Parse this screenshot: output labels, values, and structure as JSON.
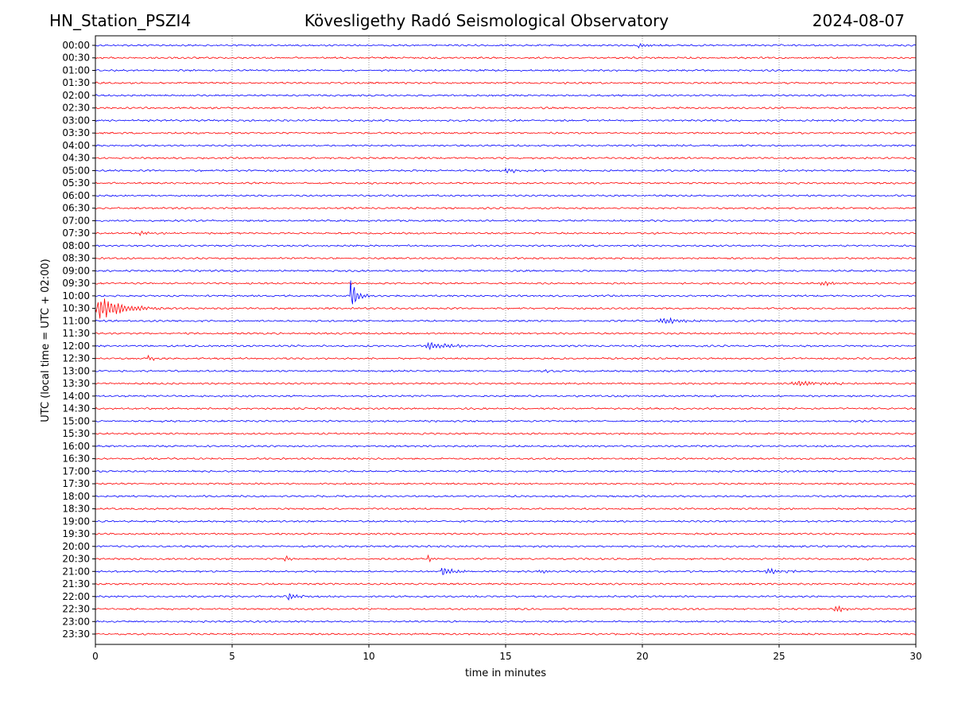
{
  "header": {
    "station": "HN_Station_PSZI4",
    "observatory": "Kövesligethy Radó Seismological Observatory",
    "date": "2024-08-07"
  },
  "chart_data": {
    "type": "line",
    "title": "Kövesligethy Radó Seismological Observatory",
    "xlabel": "time in minutes",
    "ylabel": "UTC (local time = UTC + 02:00)",
    "xlim": [
      0,
      30
    ],
    "x_ticks": [
      "0",
      "5",
      "10",
      "15",
      "20",
      "25",
      "30"
    ],
    "grid": "vertical dotted at x ticks",
    "colors": {
      "even_rows": "#0000ff",
      "odd_rows": "#ff0000",
      "grid": "#555555"
    },
    "rows": [
      "00:00",
      "00:30",
      "01:00",
      "01:30",
      "02:00",
      "02:30",
      "03:00",
      "03:30",
      "04:00",
      "04:30",
      "05:00",
      "05:30",
      "06:00",
      "06:30",
      "07:00",
      "07:30",
      "08:00",
      "08:30",
      "09:00",
      "09:30",
      "10:00",
      "10:30",
      "11:00",
      "11:30",
      "12:00",
      "12:30",
      "13:00",
      "13:30",
      "14:00",
      "14:30",
      "15:00",
      "15:30",
      "16:00",
      "16:30",
      "17:00",
      "17:30",
      "18:00",
      "18:30",
      "19:00",
      "19:30",
      "20:00",
      "20:30",
      "21:00",
      "21:30",
      "22:00",
      "22:30",
      "23:00",
      "23:30"
    ],
    "events": [
      {
        "row": "00:00",
        "start": 19.8,
        "end": 20.8,
        "amp": 0.25
      },
      {
        "row": "05:00",
        "start": 14.9,
        "end": 17.0,
        "amp": 0.25
      },
      {
        "row": "07:30",
        "start": 1.6,
        "end": 2.4,
        "amp": 0.25
      },
      {
        "row": "09:30",
        "start": 26.5,
        "end": 27.5,
        "amp": 0.35
      },
      {
        "row": "10:00",
        "start": 9.3,
        "end": 10.0,
        "amp": 1.8
      },
      {
        "row": "10:30",
        "start": 0.0,
        "end": 2.5,
        "amp": 1.4
      },
      {
        "row": "11:00",
        "start": 20.5,
        "end": 22.8,
        "amp": 0.4
      },
      {
        "row": "12:00",
        "start": 12.0,
        "end": 14.8,
        "amp": 0.45
      },
      {
        "row": "12:30",
        "start": 1.9,
        "end": 2.5,
        "amp": 0.4
      },
      {
        "row": "13:00",
        "start": 16.4,
        "end": 17.0,
        "amp": 0.25
      },
      {
        "row": "13:30",
        "start": 25.4,
        "end": 28.7,
        "amp": 0.35
      },
      {
        "row": "20:30",
        "start": 6.9,
        "end": 7.5,
        "amp": 0.4
      },
      {
        "row": "20:30",
        "start": 12.1,
        "end": 12.8,
        "amp": 0.4
      },
      {
        "row": "20:30",
        "start": 28.2,
        "end": 29.0,
        "amp": 0.2
      },
      {
        "row": "21:00",
        "start": 12.6,
        "end": 13.8,
        "amp": 0.5
      },
      {
        "row": "21:00",
        "start": 16.2,
        "end": 17.1,
        "amp": 0.3
      },
      {
        "row": "21:00",
        "start": 24.5,
        "end": 26.0,
        "amp": 0.35
      },
      {
        "row": "22:00",
        "start": 7.0,
        "end": 7.8,
        "amp": 0.55
      },
      {
        "row": "22:30",
        "start": 27.0,
        "end": 28.0,
        "amp": 0.45
      }
    ]
  }
}
